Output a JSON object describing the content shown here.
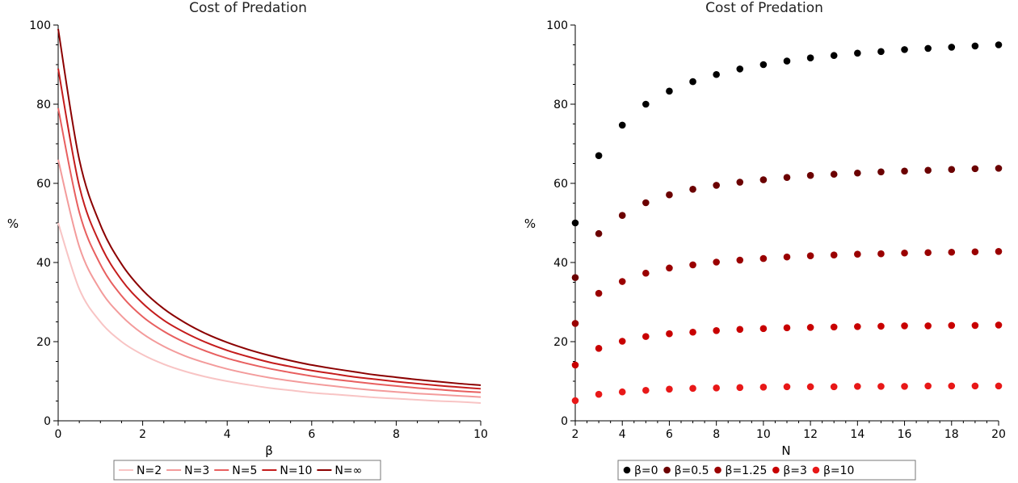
{
  "chart_data": [
    {
      "type": "line",
      "title": "Cost of Predation",
      "xlabel": "β",
      "ylabel": "%",
      "xlim": [
        0,
        10
      ],
      "ylim": [
        0,
        100
      ],
      "xticks": [
        0,
        2,
        4,
        6,
        8,
        10
      ],
      "yticks": [
        0,
        20,
        40,
        60,
        80,
        100
      ],
      "grid": false,
      "legend_position": "bottom",
      "x": [
        0,
        0.5,
        1,
        1.5,
        2,
        2.5,
        3,
        3.5,
        4,
        4.5,
        5,
        5.5,
        6,
        6.5,
        7,
        7.5,
        8,
        8.5,
        9,
        9.5,
        10
      ],
      "series": [
        {
          "name": "N=2",
          "color": "#f8c4c4",
          "values": [
            50,
            33.3,
            25,
            20,
            16.7,
            14.3,
            12.5,
            11.1,
            10,
            9.1,
            8.3,
            7.7,
            7.1,
            6.7,
            6.3,
            5.9,
            5.6,
            5.3,
            5,
            4.8,
            4.5
          ]
        },
        {
          "name": "N=3",
          "color": "#f39b9b",
          "values": [
            66,
            44,
            33,
            26.5,
            22,
            18.8,
            16.4,
            14.6,
            13.1,
            11.9,
            10.9,
            10.1,
            9.4,
            8.8,
            8.2,
            7.7,
            7.3,
            6.9,
            6.6,
            6.3,
            6
          ]
        },
        {
          "name": "N=5",
          "color": "#e85f5f",
          "values": [
            79,
            52.7,
            39.5,
            31.6,
            26.3,
            22.6,
            19.8,
            17.6,
            15.8,
            14.4,
            13.2,
            12.2,
            11.3,
            10.5,
            9.9,
            9.3,
            8.8,
            8.3,
            7.9,
            7.5,
            7.2
          ]
        },
        {
          "name": "N=10",
          "color": "#c41c1c",
          "values": [
            89,
            59.3,
            44.5,
            35.6,
            29.7,
            25.4,
            22.3,
            19.8,
            17.8,
            16.2,
            14.8,
            13.7,
            12.7,
            11.9,
            11.1,
            10.5,
            9.9,
            9.4,
            8.9,
            8.5,
            8.1
          ]
        },
        {
          "name": "N=∞",
          "color": "#8b0000",
          "values": [
            99,
            66,
            49.5,
            39.6,
            33,
            28.3,
            24.8,
            22,
            19.8,
            18,
            16.5,
            15.2,
            14.1,
            13.2,
            12.4,
            11.6,
            11,
            10.4,
            9.9,
            9.4,
            9
          ]
        }
      ]
    },
    {
      "type": "scatter",
      "title": "Cost of Predation",
      "xlabel": "N",
      "ylabel": "%",
      "xlim": [
        2,
        20
      ],
      "ylim": [
        0,
        100
      ],
      "xticks": [
        2,
        4,
        6,
        8,
        10,
        12,
        14,
        16,
        18,
        20
      ],
      "yticks": [
        0,
        20,
        40,
        60,
        80,
        100
      ],
      "grid": false,
      "legend_position": "bottom",
      "x": [
        2,
        3,
        4,
        5,
        6,
        7,
        8,
        9,
        10,
        11,
        12,
        13,
        14,
        15,
        16,
        17,
        18,
        19,
        20
      ],
      "series": [
        {
          "name": "β=0",
          "color": "#000000",
          "values": [
            50,
            67,
            74.7,
            80,
            83.3,
            85.7,
            87.5,
            88.9,
            90,
            90.9,
            91.7,
            92.3,
            92.9,
            93.3,
            93.8,
            94.1,
            94.4,
            94.7,
            95
          ]
        },
        {
          "name": "β=0.5",
          "color": "#6b0000",
          "values": [
            36.2,
            47.3,
            51.9,
            55.1,
            57.1,
            58.5,
            59.5,
            60.3,
            60.9,
            61.5,
            62,
            62.3,
            62.6,
            62.9,
            63.1,
            63.3,
            63.5,
            63.7,
            63.8
          ]
        },
        {
          "name": "β=1.25",
          "color": "#9a0000",
          "values": [
            24.6,
            32.2,
            35.2,
            37.3,
            38.6,
            39.4,
            40.1,
            40.6,
            41,
            41.4,
            41.7,
            41.9,
            42.1,
            42.2,
            42.4,
            42.5,
            42.6,
            42.7,
            42.8
          ]
        },
        {
          "name": "β=3",
          "color": "#c80000",
          "values": [
            14.1,
            18.3,
            20.1,
            21.3,
            22,
            22.4,
            22.8,
            23.1,
            23.3,
            23.5,
            23.6,
            23.7,
            23.8,
            23.9,
            24,
            24,
            24.1,
            24.1,
            24.2
          ]
        },
        {
          "name": "β=10",
          "color": "#e81818",
          "values": [
            5.1,
            6.7,
            7.3,
            7.7,
            8,
            8.2,
            8.3,
            8.4,
            8.5,
            8.6,
            8.6,
            8.6,
            8.7,
            8.7,
            8.7,
            8.8,
            8.8,
            8.8,
            8.8
          ]
        }
      ]
    }
  ]
}
